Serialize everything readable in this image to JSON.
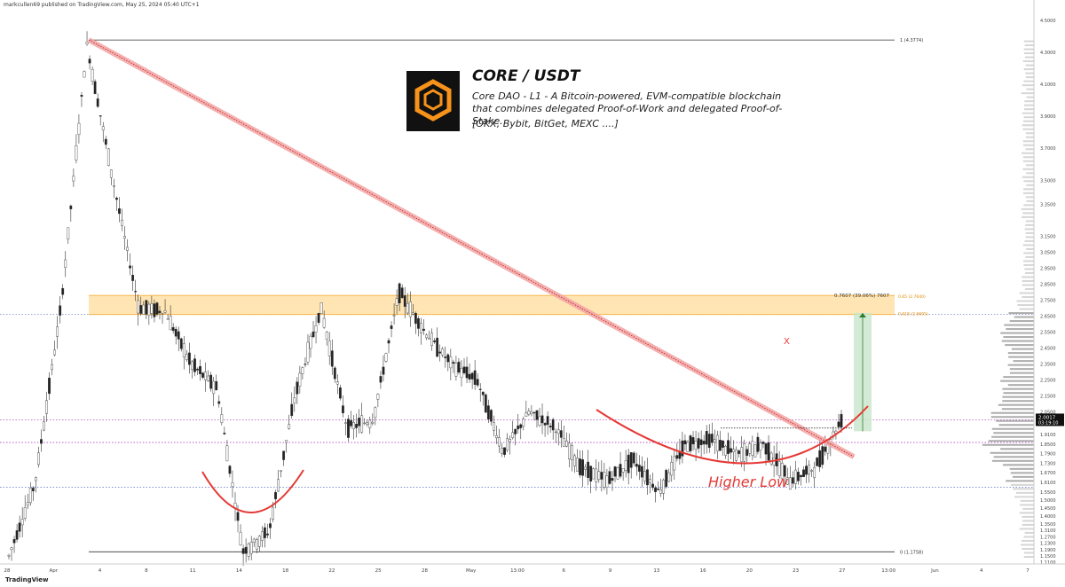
{
  "publisher_line": "markcullen69 published on TradingView.com, May 25, 2024 05:40 UTC+1",
  "footer_logo": "TradingView",
  "info_card": {
    "logo_icon": "core-hexagon-logo-icon",
    "title": "CORE / USDT",
    "description": "Core DAO - L1 - A Bitcoin-powered, EVM-compatible blockchain that combines delegated Proof-of-Work and delegated Proof-of-Stake.",
    "exchanges": "[OKX, Bybit, BitGet, MEXC ....]"
  },
  "annotations": {
    "higher_low": "Higher Low",
    "x_mark": "X",
    "target_label": "0.7607 (39.06%) 7607",
    "fib_top": "1 (4.3774)",
    "fib_bottom": "0 (1.1758)",
    "fib_65": "0.65 (2.7640)",
    "fib_618": "0.618 (2.6605)"
  },
  "colors": {
    "up_candle": "#ffffff",
    "down_candle": "#222222",
    "trendline": "#f4a3a3",
    "supply_zone": "#ffe0a6",
    "supply_border": "#f5a623",
    "curve": "#e53935",
    "target_box": "#c8e6c9",
    "price_badge": "#111111"
  },
  "chart_data": {
    "type": "candlestick",
    "title": "CORE / USDT",
    "ylim": [
      1.1,
      4.55
    ],
    "price_axis_ticks": [
      "4.5000",
      "4.3000",
      "4.1000",
      "3.9000",
      "3.7000",
      "3.5000",
      "3.3500",
      "3.1500",
      "3.0500",
      "2.9500",
      "2.8500",
      "2.7500",
      "2.6500",
      "2.5500",
      "2.4500",
      "2.3500",
      "2.2500",
      "2.1500",
      "2.0500",
      "1.9100",
      "1.8500",
      "1.7900",
      "1.7300",
      "1.6700",
      "1.6100",
      "1.5500",
      "1.5000",
      "1.4500",
      "1.4000",
      "1.3500",
      "1.3100",
      "1.2700",
      "1.2300",
      "1.1900",
      "1.1500",
      "1.1100"
    ],
    "time_axis_ticks": [
      "28",
      "Apr",
      "4",
      "8",
      "11",
      "14",
      "18",
      "22",
      "25",
      "28",
      "May",
      "13:00",
      "6",
      "9",
      "13",
      "16",
      "20",
      "23",
      "27",
      "13:00",
      "Jun",
      "4",
      "7"
    ],
    "current_price": "2.0017",
    "countdown": "03:19:10",
    "levels": {
      "high": 4.3774,
      "low": 1.1758,
      "fib_65": 2.764,
      "fib_618": 2.6605,
      "target": 2.7607
    },
    "supply_zone": [
      2.66,
      2.78
    ],
    "price_path": [
      {
        "t": "Mar 28",
        "p": 1.15
      },
      {
        "t": "Mar 31",
        "p": 1.6
      },
      {
        "t": "Apr 1",
        "p": 2.7
      },
      {
        "t": "Apr 3",
        "p": 4.35
      },
      {
        "t": "Apr 4",
        "p": 3.5
      },
      {
        "t": "Apr 6",
        "p": 2.7
      },
      {
        "t": "Apr 8",
        "p": 2.68
      },
      {
        "t": "Apr 10",
        "p": 2.35
      },
      {
        "t": "Apr 12",
        "p": 2.2
      },
      {
        "t": "Apr 13",
        "p": 1.18
      },
      {
        "t": "Apr 14",
        "p": 1.3
      },
      {
        "t": "Apr 15",
        "p": 2.15
      },
      {
        "t": "Apr 16",
        "p": 2.7
      },
      {
        "t": "Apr 18",
        "p": 1.95
      },
      {
        "t": "Apr 20",
        "p": 2.0
      },
      {
        "t": "Apr 22",
        "p": 2.8
      },
      {
        "t": "Apr 24",
        "p": 2.55
      },
      {
        "t": "Apr 27",
        "p": 2.35
      },
      {
        "t": "Apr 30",
        "p": 2.25
      },
      {
        "t": "May 2",
        "p": 1.8
      },
      {
        "t": "May 3",
        "p": 2.05
      },
      {
        "t": "May 6",
        "p": 1.95
      },
      {
        "t": "May 9",
        "p": 1.7
      },
      {
        "t": "May 11",
        "p": 1.62
      },
      {
        "t": "May 13",
        "p": 1.75
      },
      {
        "t": "May 15",
        "p": 1.55
      },
      {
        "t": "May 16",
        "p": 1.85
      },
      {
        "t": "May 18",
        "p": 1.88
      },
      {
        "t": "May 20",
        "p": 1.78
      },
      {
        "t": "May 22",
        "p": 1.85
      },
      {
        "t": "May 23",
        "p": 1.62
      },
      {
        "t": "May 24",
        "p": 1.7
      },
      {
        "t": "May 25",
        "p": 2.0
      }
    ]
  }
}
